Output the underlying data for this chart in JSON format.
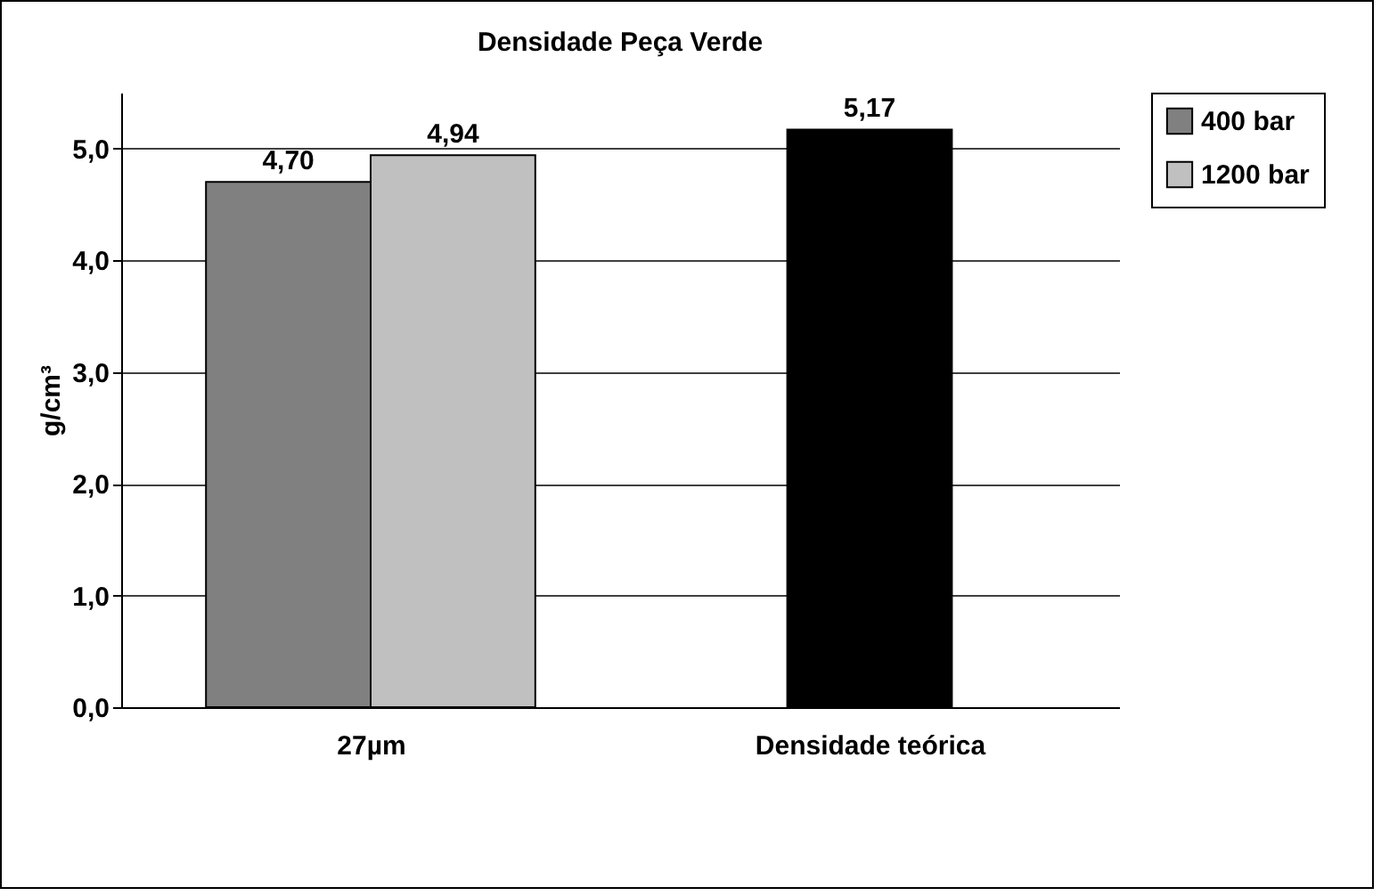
{
  "chart_data": {
    "type": "bar",
    "title": "Densidade Peça Verde",
    "ylabel": "g/cm³",
    "categories": [
      "27µm",
      "Densidade teórica"
    ],
    "series": [
      {
        "name": "400 bar",
        "color": "#808080",
        "values": [
          4.7,
          null
        ],
        "value_labels": [
          "4,70",
          null
        ]
      },
      {
        "name": "1200 bar",
        "color": "#c0c0c0",
        "values": [
          4.94,
          null
        ],
        "value_labels": [
          "4,94",
          null
        ]
      },
      {
        "color": "#000000",
        "values": [
          null,
          5.17
        ],
        "value_labels": [
          null,
          "5,17"
        ]
      }
    ],
    "ylim": [
      0,
      5.5
    ],
    "yticks": [
      {
        "value": 0,
        "label": "0,0"
      },
      {
        "value": 1,
        "label": "1,0"
      },
      {
        "value": 2,
        "label": "2,0"
      },
      {
        "value": 3,
        "label": "3,0"
      },
      {
        "value": 4,
        "label": "4,0"
      },
      {
        "value": 5,
        "label": "5,0"
      }
    ],
    "grid": "y",
    "legend": "right"
  }
}
